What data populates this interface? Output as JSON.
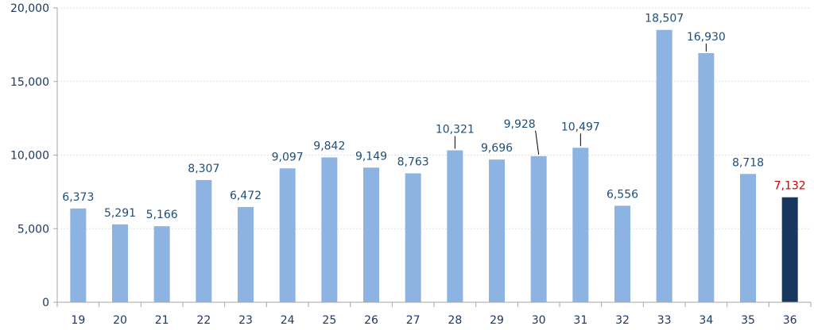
{
  "chart_data": {
    "type": "bar",
    "categories": [
      "19",
      "20",
      "21",
      "22",
      "23",
      "24",
      "25",
      "26",
      "27",
      "28",
      "29",
      "30",
      "31",
      "32",
      "33",
      "34",
      "35",
      "36"
    ],
    "values": [
      6373,
      5291,
      5166,
      8307,
      6472,
      9097,
      9842,
      9149,
      8763,
      10321,
      9696,
      9928,
      10497,
      6556,
      18507,
      16930,
      8718,
      7132
    ],
    "value_labels": [
      "6,373",
      "5,291",
      "5,166",
      "8,307",
      "6,472",
      "9,097",
      "9,842",
      "9,149",
      "8,763",
      "10,321",
      "9,696",
      "9,928",
      "10,497",
      "6,556",
      "18,507",
      "16,930",
      "8,718",
      "7,132"
    ],
    "ylim": [
      0,
      20000
    ],
    "yticks": [
      0,
      5000,
      10000,
      15000,
      20000
    ],
    "ytick_labels": [
      "0",
      "5,000",
      "10,000",
      "15,000",
      "20,000"
    ],
    "grid": true,
    "legend": false,
    "highlight_index": 17,
    "colors": {
      "bar": "#8DB3E2",
      "bar_highlight": "#17375E",
      "label": "#1F4E79",
      "label_highlight": "#CC0000",
      "axis": "#A6A6A6",
      "grid": "#D9E2F0",
      "tick_text": "#1F3864"
    }
  }
}
